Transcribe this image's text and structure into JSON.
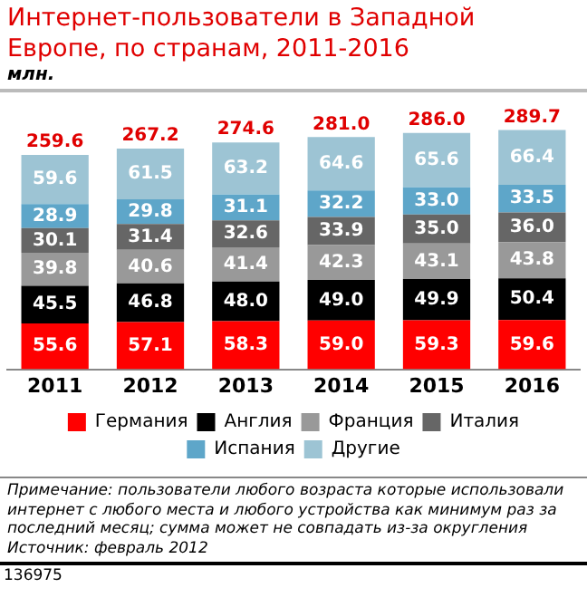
{
  "chart_data": {
    "type": "bar",
    "title": "Интернет-пользователи в Западной Европе, по странам, 2011-2016",
    "subtitle": "млн.",
    "categories": [
      "2011",
      "2012",
      "2013",
      "2014",
      "2015",
      "2016"
    ],
    "stacked": true,
    "legend": "bottom",
    "grid": false,
    "series": [
      {
        "name": "Германия",
        "color": "#ff0000",
        "values": [
          55.6,
          57.1,
          58.3,
          59.0,
          59.3,
          59.6
        ],
        "value_labels": [
          "55.6",
          "57.1",
          "58.3",
          "59.0",
          "59.3",
          "59.6"
        ]
      },
      {
        "name": "Англия",
        "color": "#000000",
        "values": [
          45.5,
          46.8,
          48.0,
          49.0,
          49.9,
          50.4
        ],
        "value_labels": [
          "45.5",
          "46.8",
          "48.0",
          "49.0",
          "49.9",
          "50.4"
        ]
      },
      {
        "name": "Франция",
        "color": "#999999",
        "values": [
          39.8,
          40.6,
          41.4,
          42.3,
          43.1,
          43.8
        ],
        "value_labels": [
          "39.8",
          "40.6",
          "41.4",
          "42.3",
          "43.1",
          "43.8"
        ]
      },
      {
        "name": "Италия",
        "color": "#666666",
        "values": [
          30.1,
          31.4,
          32.6,
          33.9,
          35.0,
          36.0
        ],
        "value_labels": [
          "30.1",
          "31.4",
          "32.6",
          "33.9",
          "35.0",
          "36.0"
        ]
      },
      {
        "name": "Испания",
        "color": "#5ea6c9",
        "values": [
          28.9,
          29.8,
          31.1,
          32.2,
          33.0,
          33.5
        ],
        "value_labels": [
          "28.9",
          "29.8",
          "31.1",
          "32.2",
          "33.0",
          "33.5"
        ]
      },
      {
        "name": "Другие",
        "color": "#9dc4d4",
        "values": [
          59.6,
          61.5,
          63.2,
          64.6,
          65.6,
          66.4
        ],
        "value_labels": [
          "59.6",
          "61.5",
          "63.2",
          "64.6",
          "65.6",
          "66.4"
        ]
      }
    ],
    "totals": [
      "259.6",
      "267.2",
      "274.6",
      "281.0",
      "286.0",
      "289.7"
    ],
    "annotations": [
      "Примечание: пользователи любого возраста которые использовали интернет с любого места и любого устройства как минимум раз за последний месяц; сумма может не совпадать из-за округления",
      "Источник: февраль 2012",
      "136975"
    ]
  }
}
